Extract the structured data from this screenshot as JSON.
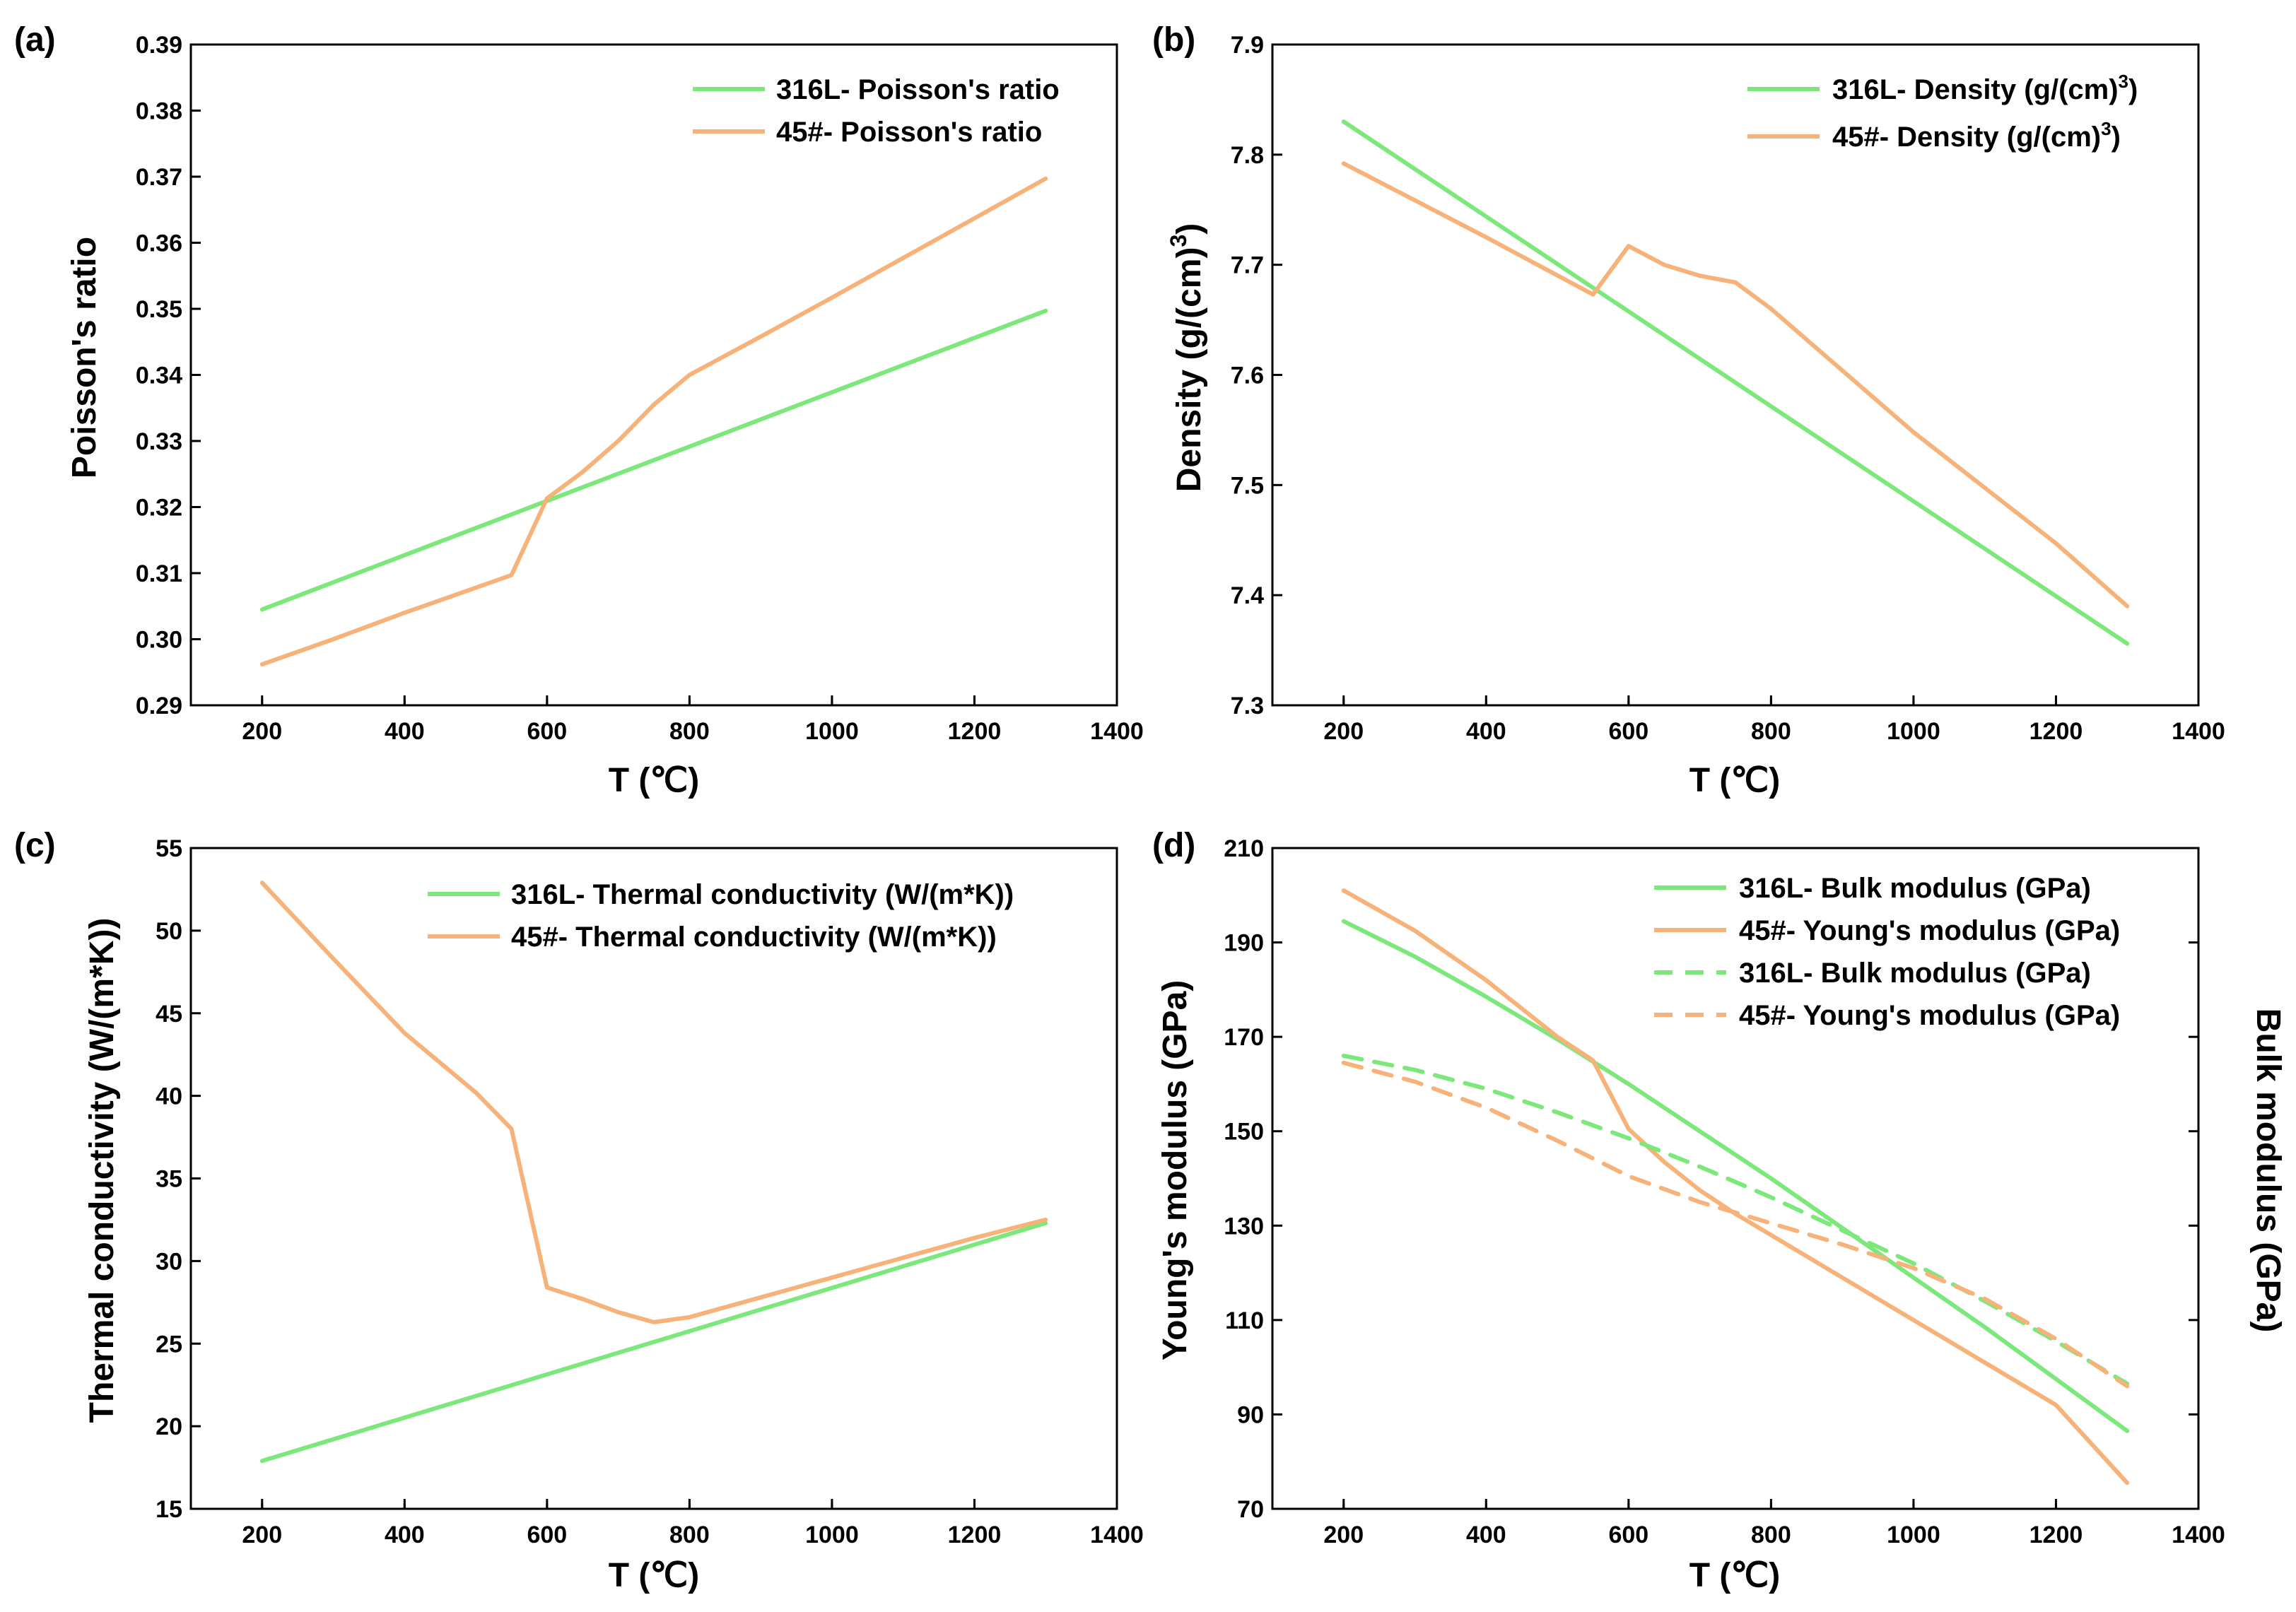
{
  "colors": {
    "green": "#7CE87C",
    "orange": "#F7B27A",
    "axis": "#000000",
    "background": "#FFFFFF"
  },
  "chart_data": [
    {
      "id": "a",
      "panel_label": "(a)",
      "type": "line",
      "xlabel": "T (℃)",
      "ylabel": "Poisson's ratio",
      "xlim": [
        100,
        1400
      ],
      "ylim": [
        0.29,
        0.39
      ],
      "xticks": [
        200,
        400,
        600,
        800,
        1000,
        1200,
        1400
      ],
      "yticks": [
        0.29,
        0.3,
        0.31,
        0.32,
        0.33,
        0.34,
        0.35,
        0.36,
        0.37,
        0.38,
        0.39
      ],
      "ytick_labels": [
        "0.29",
        "0.30",
        "0.31",
        "0.32",
        "0.33",
        "0.34",
        "0.35",
        "0.36",
        "0.37",
        "0.38",
        "0.39"
      ],
      "legend_position": "top-right",
      "series": [
        {
          "name": "316L- Poisson's ratio",
          "color": "green",
          "dash": "solid",
          "x": [
            200,
            1300
          ],
          "y": [
            0.3045,
            0.3497
          ]
        },
        {
          "name": "45#- Poisson's ratio",
          "color": "orange",
          "dash": "solid",
          "x": [
            200,
            300,
            400,
            500,
            550,
            600,
            650,
            700,
            750,
            800,
            900,
            1000,
            1100,
            1200,
            1300
          ],
          "y": [
            0.2962,
            0.3,
            0.304,
            0.3078,
            0.3097,
            0.3213,
            0.3253,
            0.33,
            0.3355,
            0.34,
            0.3458,
            0.3517,
            0.3577,
            0.3637,
            0.3697
          ]
        }
      ]
    },
    {
      "id": "b",
      "panel_label": "(b)",
      "type": "line",
      "xlabel": "T (℃)",
      "ylabel": "Density (g/(cm)",
      "ylabel_sup": "3",
      "ylabel_end": ")",
      "xlim": [
        100,
        1400
      ],
      "ylim": [
        7.3,
        7.9
      ],
      "xticks": [
        200,
        400,
        600,
        800,
        1000,
        1200,
        1400
      ],
      "yticks": [
        7.3,
        7.4,
        7.5,
        7.6,
        7.7,
        7.8,
        7.9
      ],
      "ytick_labels": [
        "7.3",
        "7.4",
        "7.5",
        "7.6",
        "7.7",
        "7.8",
        "7.9"
      ],
      "legend_position": "top-right",
      "series": [
        {
          "name": "316L- Density (g/(cm)",
          "name_sup": "3",
          "name_end": ")",
          "color": "green",
          "dash": "solid",
          "x": [
            200,
            1300
          ],
          "y": [
            7.83,
            7.356
          ]
        },
        {
          "name": "45#- Density (g/(cm)",
          "name_sup": "3",
          "name_end": ")",
          "color": "orange",
          "dash": "solid",
          "x": [
            200,
            400,
            550,
            600,
            650,
            700,
            750,
            800,
            1000,
            1200,
            1300
          ],
          "y": [
            7.792,
            7.725,
            7.673,
            7.717,
            7.7,
            7.69,
            7.684,
            7.66,
            7.548,
            7.447,
            7.39
          ]
        }
      ]
    },
    {
      "id": "c",
      "panel_label": "(c)",
      "type": "line",
      "xlabel": "T (℃)",
      "ylabel": "Thermal conductivity (W/(m*K))",
      "xlim": [
        100,
        1400
      ],
      "ylim": [
        15,
        55
      ],
      "xticks": [
        200,
        400,
        600,
        800,
        1000,
        1200,
        1400
      ],
      "yticks": [
        15,
        20,
        25,
        30,
        35,
        40,
        45,
        50,
        55
      ],
      "ytick_labels": [
        "15",
        "20",
        "25",
        "30",
        "35",
        "40",
        "45",
        "50",
        "55"
      ],
      "legend_position": "top-right",
      "series": [
        {
          "name": "316L- Thermal conductivity (W/(m*K))",
          "color": "green",
          "dash": "solid",
          "x": [
            200,
            1300
          ],
          "y": [
            17.9,
            32.3
          ]
        },
        {
          "name": "45#- Thermal conductivity (W/(m*K))",
          "color": "orange",
          "dash": "solid",
          "x": [
            200,
            300,
            400,
            500,
            550,
            600,
            650,
            700,
            750,
            800,
            900,
            1000,
            1100,
            1200,
            1300
          ],
          "y": [
            52.9,
            48.3,
            43.8,
            40.2,
            38.0,
            28.4,
            27.7,
            26.9,
            26.3,
            26.6,
            27.8,
            29.0,
            30.2,
            31.4,
            32.5
          ]
        }
      ]
    },
    {
      "id": "d",
      "panel_label": "(d)",
      "type": "line",
      "xlabel": "T (℃)",
      "ylabel": "Young's modulus (GPa)",
      "ylabel_right": "Bulk modulus (GPa)",
      "xlim": [
        100,
        1400
      ],
      "ylim": [
        70,
        210
      ],
      "xticks": [
        200,
        400,
        600,
        800,
        1000,
        1200,
        1400
      ],
      "yticks": [
        70,
        90,
        110,
        130,
        150,
        170,
        190,
        210
      ],
      "ytick_labels": [
        "70",
        "90",
        "110",
        "130",
        "150",
        "170",
        "190",
        "210"
      ],
      "legend_position": "top-right",
      "series": [
        {
          "name": "316L- Bulk modulus (GPa)",
          "color": "green",
          "dash": "solid",
          "x": [
            200,
            300,
            400,
            500,
            600,
            700,
            800,
            900,
            1000,
            1100,
            1200,
            1300
          ],
          "y": [
            194.5,
            187.0,
            178.5,
            169.5,
            160.0,
            150.0,
            140.0,
            129.5,
            119.0,
            108.5,
            97.5,
            86.5
          ]
        },
        {
          "name": "45#- Young's modulus (GPa)",
          "color": "orange",
          "dash": "solid",
          "x": [
            200,
            300,
            400,
            500,
            550,
            600,
            650,
            700,
            750,
            800,
            900,
            1000,
            1100,
            1200,
            1300
          ],
          "y": [
            201.0,
            192.5,
            182.0,
            170.0,
            165.0,
            150.5,
            143.5,
            137.5,
            132.5,
            128.0,
            119.0,
            110.0,
            101.0,
            92.0,
            75.5
          ]
        },
        {
          "name": "316L- Bulk modulus (GPa)",
          "color": "green",
          "dash": "dashed",
          "x": [
            200,
            300,
            400,
            500,
            600,
            700,
            800,
            900,
            1000,
            1100,
            1200,
            1300
          ],
          "y": [
            166.0,
            163.0,
            159.0,
            154.0,
            148.5,
            142.5,
            136.0,
            129.0,
            122.0,
            114.0,
            105.5,
            96.5
          ]
        },
        {
          "name": "45#- Young's modulus (GPa)",
          "color": "orange",
          "dash": "dashed",
          "x": [
            200,
            300,
            400,
            500,
            600,
            700,
            800,
            900,
            1000,
            1100,
            1200,
            1300
          ],
          "y": [
            164.5,
            160.5,
            155.0,
            148.0,
            140.5,
            135.0,
            130.5,
            126.0,
            121.0,
            114.5,
            106.0,
            96.0
          ]
        }
      ]
    }
  ]
}
